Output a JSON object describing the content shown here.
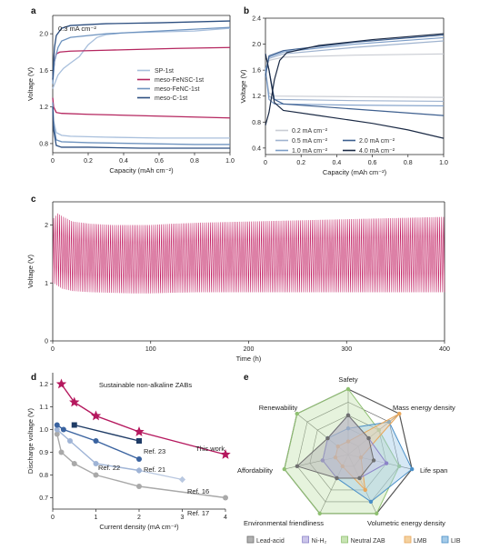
{
  "chart_data": [
    {
      "panel": "a",
      "type": "line",
      "annotation": "0.3 mA cm⁻²",
      "xlabel": "Capacity (mAh cm⁻²)",
      "ylabel": "Voltage (V)",
      "xlim": [
        0,
        1.0
      ],
      "ylim": [
        0.7,
        2.2
      ],
      "xticks": [
        "0",
        "0.2",
        "0.4",
        "0.6",
        "0.8",
        "1.0"
      ],
      "yticks": [
        "0.8",
        "1.2",
        "1.6",
        "2.0"
      ],
      "legend_position": "center-right",
      "series": [
        {
          "name": "SP-1st",
          "color": "#a8bfdc",
          "charge": [
            [
              0,
              1.4
            ],
            [
              0.01,
              1.45
            ],
            [
              0.03,
              1.55
            ],
            [
              0.06,
              1.62
            ],
            [
              0.1,
              1.68
            ],
            [
              0.15,
              1.75
            ],
            [
              0.2,
              1.88
            ],
            [
              0.25,
              1.96
            ],
            [
              0.3,
              1.99
            ],
            [
              0.4,
              2.01
            ],
            [
              0.6,
              2.02
            ],
            [
              0.8,
              2.03
            ],
            [
              1.0,
              2.06
            ]
          ],
          "discharge": [
            [
              0,
              1.3
            ],
            [
              0.005,
              1.05
            ],
            [
              0.02,
              0.92
            ],
            [
              0.05,
              0.89
            ],
            [
              0.1,
              0.88
            ],
            [
              0.3,
              0.87
            ],
            [
              0.6,
              0.86
            ],
            [
              0.8,
              0.86
            ],
            [
              1.0,
              0.86
            ]
          ]
        },
        {
          "name": "meso-FeNSC-1st",
          "color": "#b5265f",
          "charge": [
            [
              0,
              1.5
            ],
            [
              0.01,
              1.7
            ],
            [
              0.02,
              1.78
            ],
            [
              0.04,
              1.8
            ],
            [
              0.1,
              1.81
            ],
            [
              0.3,
              1.82
            ],
            [
              0.5,
              1.83
            ],
            [
              0.7,
              1.84
            ],
            [
              1.0,
              1.85
            ]
          ],
          "discharge": [
            [
              0,
              1.3
            ],
            [
              0.005,
              1.2
            ],
            [
              0.02,
              1.14
            ],
            [
              0.05,
              1.13
            ],
            [
              0.2,
              1.12
            ],
            [
              0.4,
              1.11
            ],
            [
              0.6,
              1.1
            ],
            [
              0.8,
              1.09
            ],
            [
              1.0,
              1.08
            ]
          ]
        },
        {
          "name": "meso-FeNC-1st",
          "color": "#6e93bf",
          "charge": [
            [
              0,
              1.45
            ],
            [
              0.01,
              1.7
            ],
            [
              0.03,
              1.85
            ],
            [
              0.05,
              1.92
            ],
            [
              0.1,
              1.96
            ],
            [
              0.3,
              2.0
            ],
            [
              0.5,
              2.02
            ],
            [
              0.7,
              2.04
            ],
            [
              1.0,
              2.07
            ]
          ],
          "discharge": [
            [
              0,
              1.25
            ],
            [
              0.005,
              1.0
            ],
            [
              0.02,
              0.84
            ],
            [
              0.05,
              0.82
            ],
            [
              0.2,
              0.81
            ],
            [
              0.5,
              0.8
            ],
            [
              0.8,
              0.79
            ],
            [
              1.0,
              0.79
            ]
          ]
        },
        {
          "name": "meso-C-1st",
          "color": "#2d4f80",
          "charge": [
            [
              0,
              1.5
            ],
            [
              0.005,
              1.7
            ],
            [
              0.01,
              1.85
            ],
            [
              0.02,
              1.98
            ],
            [
              0.05,
              2.06
            ],
            [
              0.1,
              2.09
            ],
            [
              0.3,
              2.11
            ],
            [
              0.6,
              2.12
            ],
            [
              0.8,
              2.13
            ],
            [
              1.0,
              2.14
            ]
          ],
          "discharge": [
            [
              0,
              1.2
            ],
            [
              0.005,
              0.95
            ],
            [
              0.02,
              0.78
            ],
            [
              0.05,
              0.76
            ],
            [
              0.2,
              0.76
            ],
            [
              0.5,
              0.75
            ],
            [
              0.8,
              0.75
            ],
            [
              1.0,
              0.75
            ]
          ]
        }
      ]
    },
    {
      "panel": "b",
      "type": "line",
      "xlabel": "Capacity (mAh cm⁻²)",
      "ylabel": "Voltage (V)",
      "xlim": [
        0,
        1.0
      ],
      "ylim": [
        0.3,
        2.4
      ],
      "xticks": [
        "0",
        "0.2",
        "0.4",
        "0.6",
        "0.8",
        "1.0"
      ],
      "yticks": [
        "0.4",
        "0.8",
        "1.2",
        "1.6",
        "2.0",
        "2.4"
      ],
      "legend_position": "bottom",
      "series": [
        {
          "name": "0.2 mA cm⁻²",
          "color": "#c9ccd3",
          "charge": [
            [
              0,
              1.6
            ],
            [
              0.02,
              1.75
            ],
            [
              0.1,
              1.8
            ],
            [
              0.5,
              1.83
            ],
            [
              1.0,
              1.85
            ]
          ],
          "discharge": [
            [
              0,
              1.6
            ],
            [
              0.02,
              1.25
            ],
            [
              0.05,
              1.2
            ],
            [
              0.5,
              1.19
            ],
            [
              1.0,
              1.18
            ]
          ]
        },
        {
          "name": "0.5 mA cm⁻²",
          "color": "#9fb3cf",
          "charge": [
            [
              0,
              1.6
            ],
            [
              0.02,
              1.78
            ],
            [
              0.1,
              1.85
            ],
            [
              0.5,
              1.95
            ],
            [
              1.0,
              2.05
            ]
          ],
          "discharge": [
            [
              0,
              1.6
            ],
            [
              0.02,
              1.2
            ],
            [
              0.05,
              1.15
            ],
            [
              0.5,
              1.13
            ],
            [
              1.0,
              1.12
            ]
          ]
        },
        {
          "name": "1.0 mA cm⁻²",
          "color": "#7b9cc7",
          "charge": [
            [
              0,
              1.6
            ],
            [
              0.02,
              1.8
            ],
            [
              0.1,
              1.88
            ],
            [
              0.5,
              2.0
            ],
            [
              1.0,
              2.1
            ]
          ],
          "discharge": [
            [
              0,
              1.6
            ],
            [
              0.02,
              1.15
            ],
            [
              0.05,
              1.08
            ],
            [
              0.5,
              1.06
            ],
            [
              1.0,
              1.05
            ]
          ]
        },
        {
          "name": "2.0 mA cm⁻²",
          "color": "#3d5f8f",
          "charge": [
            [
              0,
              1.5
            ],
            [
              0.02,
              1.82
            ],
            [
              0.1,
              1.9
            ],
            [
              0.5,
              2.03
            ],
            [
              1.0,
              2.14
            ]
          ],
          "discharge": [
            [
              0,
              1.85
            ],
            [
              0.02,
              1.6
            ],
            [
              0.05,
              1.15
            ],
            [
              0.1,
              1.08
            ],
            [
              0.5,
              1.0
            ],
            [
              1.0,
              0.9
            ]
          ]
        },
        {
          "name": "4.0 mA cm⁻²",
          "color": "#1b2a45",
          "charge": [
            [
              0,
              0.75
            ],
            [
              0.02,
              0.95
            ],
            [
              0.05,
              1.45
            ],
            [
              0.08,
              1.75
            ],
            [
              0.12,
              1.87
            ],
            [
              0.3,
              1.98
            ],
            [
              0.6,
              2.07
            ],
            [
              1.0,
              2.16
            ]
          ],
          "discharge": [
            [
              0,
              1.85
            ],
            [
              0.02,
              1.6
            ],
            [
              0.05,
              1.1
            ],
            [
              0.1,
              0.98
            ],
            [
              0.3,
              0.9
            ],
            [
              0.6,
              0.78
            ],
            [
              0.8,
              0.68
            ],
            [
              1.0,
              0.55
            ]
          ]
        }
      ]
    },
    {
      "panel": "c",
      "type": "line",
      "xlabel": "Time (h)",
      "ylabel": "Voltage (V)",
      "xlim": [
        0,
        400
      ],
      "ylim": [
        0,
        2.4
      ],
      "xticks": [
        "0",
        "100",
        "200",
        "300",
        "400"
      ],
      "yticks": [
        "0",
        "1",
        "2"
      ],
      "color": "#c0195e",
      "cycle_period_h": 2,
      "envelope": {
        "time": [
          0,
          5,
          10,
          20,
          40,
          60,
          80,
          100,
          120,
          150,
          200,
          250,
          300,
          350,
          400
        ],
        "upper": [
          2.1,
          2.2,
          2.15,
          2.06,
          2.02,
          2.0,
          2.0,
          2.0,
          2.02,
          2.04,
          2.06,
          2.08,
          2.1,
          2.12,
          2.14
        ],
        "lower": [
          1.0,
          0.95,
          0.9,
          0.86,
          0.84,
          0.83,
          0.82,
          0.82,
          0.83,
          0.84,
          0.84,
          0.84,
          0.84,
          0.84,
          0.84
        ]
      }
    },
    {
      "panel": "d",
      "type": "line",
      "title": "Sustainable non-alkaline ZABs",
      "xlabel": "Current density (mA cm⁻²)",
      "ylabel": "Discharge voltage (V)",
      "xlim": [
        0,
        4
      ],
      "ylim": [
        0.65,
        1.25
      ],
      "xticks": [
        "0",
        "1",
        "2",
        "3",
        "4"
      ],
      "yticks": [
        "0.7",
        "0.8",
        "0.9",
        "1.0",
        "1.1",
        "1.2"
      ],
      "series": [
        {
          "name": "This work",
          "color": "#b5185e",
          "marker": "star",
          "x": [
            0.2,
            0.5,
            1.0,
            2.0,
            4.0
          ],
          "y": [
            1.2,
            1.12,
            1.06,
            0.99,
            0.89
          ]
        },
        {
          "name": "Ref. 23",
          "color": "#1f3c66",
          "marker": "square",
          "x": [
            0.5,
            2.0
          ],
          "y": [
            1.02,
            0.95
          ]
        },
        {
          "name": "Ref. 21",
          "color": "#3a63a0",
          "marker": "circle",
          "x": [
            0.1,
            0.25,
            1.0,
            2.0
          ],
          "y": [
            1.02,
            1.0,
            0.95,
            0.87
          ]
        },
        {
          "name": "Ref. 22",
          "color": "#9fb4d6",
          "marker": "circle",
          "x": [
            0.1,
            0.4,
            1.0,
            2.0
          ],
          "y": [
            1.0,
            0.95,
            0.85,
            0.82
          ]
        },
        {
          "name": "Ref. 16",
          "color": "#b9c8e0",
          "marker": "diamond",
          "x": [
            2.0,
            3.0
          ],
          "y": [
            0.82,
            0.78
          ]
        },
        {
          "name": "Ref. 17",
          "color": "#a9a9a9",
          "marker": "circle",
          "x": [
            0.1,
            0.2,
            0.5,
            1.0,
            2.0,
            4.0
          ],
          "y": [
            0.98,
            0.9,
            0.85,
            0.8,
            0.75,
            0.7
          ]
        }
      ]
    },
    {
      "panel": "e",
      "type": "radar",
      "axes": [
        "Safety",
        "Mass energy density",
        "Life span",
        "Volumetric energy density",
        "Environmental friendliness",
        "Affordability",
        "Renewability"
      ],
      "axis_colors": [
        "#b5185e",
        "#1f3c66",
        "#1f3c66",
        "#1f3c66",
        "#b5185e",
        "#b5185e",
        "#b5185e"
      ],
      "levels": 5,
      "series": [
        {
          "name": "Lead-acid",
          "color": "#6f6f6f",
          "fill": "#b0b0b0",
          "values": [
            3,
            2,
            2,
            2,
            2,
            4,
            2
          ]
        },
        {
          "name": "Ni-H₂",
          "color": "#8b83c8",
          "fill": "#cbc5ea",
          "values": [
            3,
            2,
            3,
            2,
            2,
            2,
            2
          ]
        },
        {
          "name": "Neutral ZAB",
          "color": "#8fc071",
          "fill": "#c8e4b3",
          "values": [
            5,
            3,
            4,
            5,
            5,
            5,
            5
          ]
        },
        {
          "name": "LMB",
          "color": "#e8a65a",
          "fill": "#f4d19f",
          "values": [
            1,
            5,
            1,
            3,
            1,
            1,
            1
          ]
        },
        {
          "name": "LIB",
          "color": "#4a8fc7",
          "fill": "#a5cbe8",
          "values": [
            2,
            4,
            5,
            4,
            2,
            2,
            2
          ]
        }
      ]
    }
  ]
}
